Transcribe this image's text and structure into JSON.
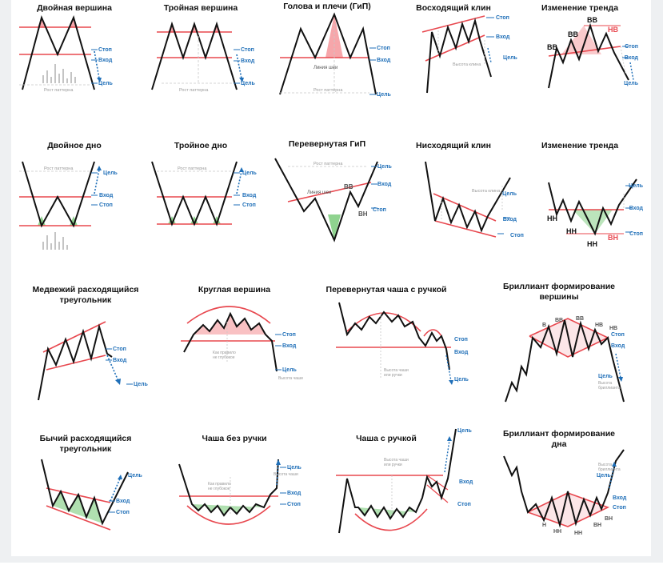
{
  "colors": {
    "line": "#111111",
    "red": "#e8484f",
    "pink": "#f6a6aa",
    "green": "#3fb845",
    "blue": "#1f6fb8",
    "grey": "#9a9a9a"
  },
  "labels": {
    "stop": "Стоп",
    "entry": "Вход",
    "target": "Цель",
    "pattern_growth": "Рост паттерна",
    "neckline": "Линия шеи",
    "wedge_height": "Высота клина",
    "bb": "ВВ",
    "nv": "НВ",
    "nn": "НН",
    "vn": "ВН",
    "v": "В",
    "n": "Н",
    "rise_right": "Как правило",
    "rise_right2": "не глубокое",
    "cup_height": "Высота чаши",
    "cup_height2": "или ручки",
    "cup_height_only": "Высота чаши",
    "diamond_height": "Высота",
    "diamond_height2": "бриллианта"
  },
  "patterns": [
    {
      "title": "Двойная вершина"
    },
    {
      "title": "Тройная вершина"
    },
    {
      "title": "Голова и плечи (ГиП)"
    },
    {
      "title": "Восходящий клин"
    },
    {
      "title": "Изменение тренда"
    },
    {
      "title": "Двойное дно"
    },
    {
      "title": "Тройное дно"
    },
    {
      "title": "Перевернутая ГиП"
    },
    {
      "title": "Нисходящий клин"
    },
    {
      "title": "Изменение тренда"
    },
    {
      "title": "Медвежий расходящийся треугольник"
    },
    {
      "title": "Круглая вершина"
    },
    {
      "title": "Перевернутая чаша с ручкой"
    },
    {
      "title": "Бриллиант формирование вершины"
    },
    {
      "title": "Бычий расходящийся треугольник"
    },
    {
      "title": "Чаша без ручки"
    },
    {
      "title": "Чаша с ручкой"
    },
    {
      "title": "Бриллиант формирование дна"
    }
  ]
}
